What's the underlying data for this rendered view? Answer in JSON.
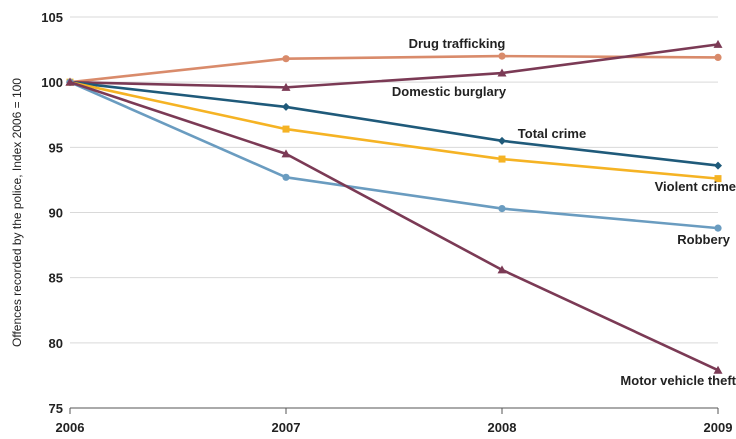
{
  "chart_data": {
    "type": "line",
    "title": "",
    "xlabel": "",
    "ylabel": "Offences recorded by the police, Index 2006 = 100",
    "x": [
      "2006",
      "2007",
      "2008",
      "2009"
    ],
    "ylim": [
      75,
      105
    ],
    "yticks": [
      75,
      80,
      85,
      90,
      95,
      100,
      105
    ],
    "grid": "horizontal",
    "legend": "inline labels",
    "series": [
      {
        "name": "Drug trafficking",
        "color": "#d98b6b",
        "marker": "circle",
        "values": [
          100,
          101.8,
          102.0,
          101.9
        ]
      },
      {
        "name": "Domestic burglary",
        "color": "#7b3a55",
        "marker": "triangle",
        "values": [
          100,
          99.6,
          100.7,
          102.9
        ]
      },
      {
        "name": "Total crime",
        "color": "#1f5a7a",
        "marker": "diamond",
        "values": [
          100,
          98.1,
          95.5,
          93.6
        ]
      },
      {
        "name": "Violent crime",
        "color": "#f5b324",
        "marker": "square",
        "values": [
          100,
          96.4,
          94.1,
          92.6
        ]
      },
      {
        "name": "Robbery",
        "color": "#6a9cc0",
        "marker": "circle",
        "values": [
          100,
          92.7,
          90.3,
          88.8
        ]
      },
      {
        "name": "Motor vehicle theft",
        "color": "#7b3a55",
        "marker": "triangle",
        "values": [
          100,
          94.5,
          85.6,
          77.9
        ]
      }
    ]
  }
}
